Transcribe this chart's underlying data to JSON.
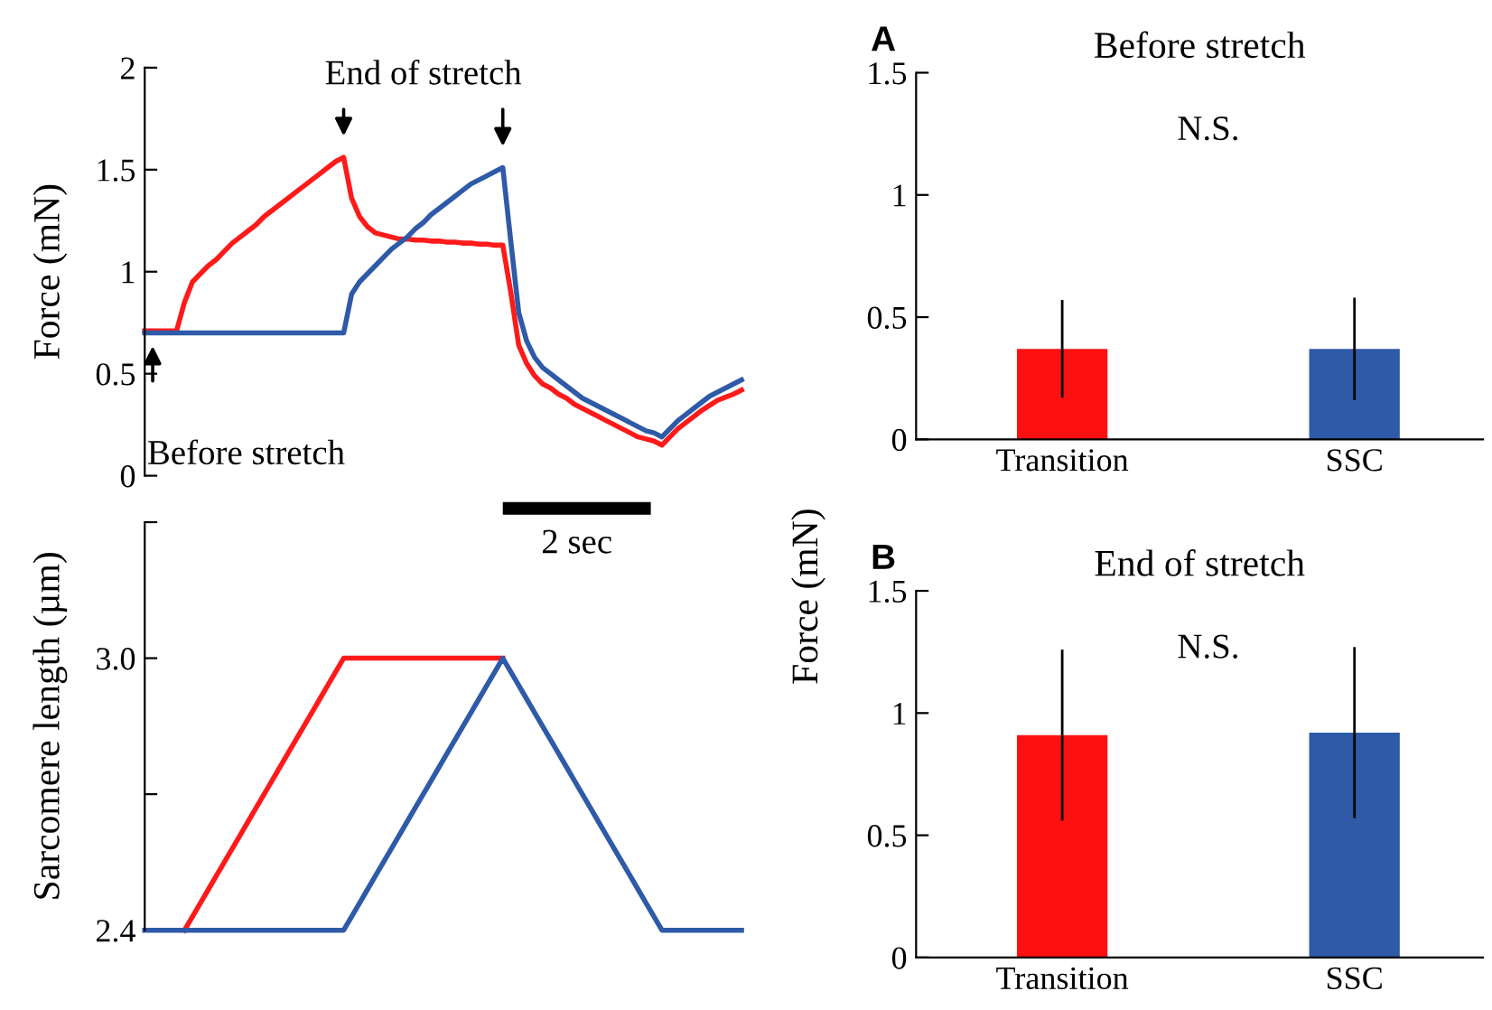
{
  "chart_data": [
    {
      "type": "line",
      "ylabel": "Force (mN)",
      "ylim": [
        0,
        2
      ],
      "yticks": [
        0,
        0.5,
        1,
        1.5,
        2
      ],
      "tick_labels": "y",
      "annotations": [
        "End of stretch",
        "Before stretch",
        "2 sec"
      ],
      "categories": [
        null,
        null,
        null,
        null,
        null,
        null,
        null,
        null,
        null,
        null,
        null,
        null,
        null,
        null,
        null,
        null,
        null,
        null,
        null,
        null,
        null,
        null,
        null,
        null,
        null,
        null,
        null,
        null,
        null,
        null,
        null,
        null,
        null,
        null,
        null,
        null,
        null,
        null,
        null,
        null,
        null,
        null,
        null,
        null,
        null,
        null,
        null,
        null,
        null,
        null,
        null,
        null,
        null,
        null,
        null,
        null,
        null,
        null,
        null,
        null,
        null,
        null,
        null,
        null,
        null,
        null,
        null,
        null,
        null,
        null,
        null,
        null,
        null,
        null,
        null,
        null
      ],
      "series": [
        {
          "color": "#ff1a1a",
          "values": [
            0.71,
            0.71,
            0.71,
            0.71,
            0.71,
            0.85,
            0.95,
            0.99,
            1.03,
            1.06,
            1.1,
            1.14,
            1.17,
            1.2,
            1.23,
            1.27,
            1.3,
            1.33,
            1.36,
            1.39,
            1.42,
            1.45,
            1.48,
            1.51,
            1.54,
            1.56,
            1.36,
            1.27,
            1.22,
            1.19,
            1.18,
            1.17,
            1.16,
            1.16,
            1.155,
            1.155,
            1.15,
            1.15,
            1.145,
            1.145,
            1.14,
            1.14,
            1.135,
            1.135,
            1.13,
            1.13,
            0.9,
            0.64,
            0.55,
            0.49,
            0.45,
            0.43,
            0.4,
            0.38,
            0.35,
            0.33,
            0.31,
            0.29,
            0.27,
            0.25,
            0.23,
            0.21,
            0.19,
            0.18,
            0.17,
            0.15,
            0.19,
            0.23,
            0.26,
            0.29,
            0.32,
            0.345,
            0.37,
            0.385,
            0.4,
            0.42
          ]
        },
        {
          "color": "#2e5aa8",
          "values": [
            0.7,
            0.7,
            0.7,
            0.7,
            0.7,
            0.7,
            0.7,
            0.7,
            0.7,
            0.7,
            0.7,
            0.7,
            0.7,
            0.7,
            0.7,
            0.7,
            0.7,
            0.7,
            0.7,
            0.7,
            0.7,
            0.7,
            0.7,
            0.7,
            0.7,
            0.7,
            0.89,
            0.95,
            0.99,
            1.03,
            1.07,
            1.11,
            1.14,
            1.17,
            1.21,
            1.24,
            1.28,
            1.31,
            1.34,
            1.37,
            1.4,
            1.43,
            1.45,
            1.47,
            1.49,
            1.51,
            1.15,
            0.8,
            0.66,
            0.58,
            0.53,
            0.5,
            0.47,
            0.44,
            0.41,
            0.38,
            0.36,
            0.34,
            0.32,
            0.3,
            0.28,
            0.26,
            0.24,
            0.22,
            0.21,
            0.19,
            0.23,
            0.27,
            0.3,
            0.33,
            0.36,
            0.39,
            0.41,
            0.43,
            0.45,
            0.47
          ]
        }
      ]
    },
    {
      "type": "line",
      "ylabel": "Sarcomere length (µm)",
      "ylim": [
        2.4,
        3.3
      ],
      "yticks": [
        {
          "value": 2.4,
          "label": "2.4"
        },
        {
          "value": 2.7,
          "label": null
        },
        {
          "value": 3.0,
          "label": "3.0"
        },
        {
          "value": 3.3,
          "label": null
        }
      ],
      "tick_labels": "y",
      "categories": [
        null,
        null,
        null,
        null,
        null,
        null,
        null,
        null,
        null,
        null,
        null,
        null,
        null,
        null,
        null,
        null,
        null,
        null,
        null,
        null,
        null,
        null,
        null,
        null,
        null,
        null,
        null,
        null,
        null,
        null,
        null,
        null,
        null,
        null,
        null,
        null,
        null,
        null,
        null,
        null,
        null,
        null,
        null,
        null,
        null,
        null,
        null,
        null,
        null,
        null,
        null,
        null,
        null,
        null,
        null,
        null,
        null,
        null,
        null,
        null,
        null,
        null,
        null,
        null,
        null,
        null,
        null,
        null,
        null,
        null,
        null,
        null,
        null,
        null,
        null,
        null
      ],
      "series": [
        {
          "color": "#ff1a1a",
          "values": [
            null,
            null,
            null,
            null,
            null,
            2.4,
            2.43,
            2.46,
            2.49,
            2.52,
            2.55,
            2.58,
            2.61,
            2.64,
            2.67,
            2.7,
            2.73,
            2.76,
            2.79,
            2.82,
            2.85,
            2.88,
            2.91,
            2.94,
            2.97,
            3.0,
            3.0,
            3.0,
            3.0,
            3.0,
            3.0,
            3.0,
            3.0,
            3.0,
            3.0,
            3.0,
            3.0,
            3.0,
            3.0,
            3.0,
            3.0,
            3.0,
            3.0,
            3.0,
            3.0,
            3.0,
            null,
            null,
            null,
            null,
            null,
            null,
            null,
            null,
            null,
            null,
            null,
            null,
            null,
            null,
            null,
            null,
            null,
            null,
            null,
            null,
            null,
            null,
            null,
            null,
            null,
            null,
            null,
            null,
            null,
            null
          ]
        },
        {
          "color": "#2e5aa8",
          "values": [
            2.4,
            2.4,
            2.4,
            2.4,
            2.4,
            2.4,
            2.4,
            2.4,
            2.4,
            2.4,
            2.4,
            2.4,
            2.4,
            2.4,
            2.4,
            2.4,
            2.4,
            2.4,
            2.4,
            2.4,
            2.4,
            2.4,
            2.4,
            2.4,
            2.4,
            2.4,
            2.43,
            2.46,
            2.49,
            2.52,
            2.55,
            2.58,
            2.61,
            2.64,
            2.67,
            2.7,
            2.73,
            2.76,
            2.79,
            2.82,
            2.85,
            2.88,
            2.91,
            2.94,
            2.97,
            3.0,
            2.97,
            2.94,
            2.91,
            2.88,
            2.85,
            2.82,
            2.79,
            2.76,
            2.73,
            2.7,
            2.67,
            2.64,
            2.61,
            2.58,
            2.55,
            2.52,
            2.49,
            2.46,
            2.43,
            2.4,
            2.4,
            2.4,
            2.4,
            2.4,
            2.4,
            2.4,
            2.4,
            2.4,
            2.4,
            2.4
          ]
        }
      ]
    },
    {
      "type": "bar",
      "title": "Before stretch",
      "annotations": [
        "A",
        "N.S."
      ],
      "categories": [
        "Transition",
        "SSC"
      ],
      "values": [
        0.37,
        0.37
      ],
      "errors": [
        0.2,
        0.21
      ],
      "colors": [
        "#ff1010",
        "#2e5aa8"
      ],
      "ylim": [
        0,
        1.5
      ],
      "yticks": [
        0,
        0.5,
        1,
        1.5
      ]
    },
    {
      "type": "bar",
      "title": "End of stretch",
      "ylabel": "Force (mN)",
      "annotations": [
        "B",
        "N.S."
      ],
      "categories": [
        "Transition",
        "SSC"
      ],
      "values": [
        0.91,
        0.92
      ],
      "errors": [
        0.35,
        0.35
      ],
      "colors": [
        "#ff1010",
        "#2e5aa8"
      ],
      "ylim": [
        0,
        1.5
      ],
      "yticks": [
        0,
        0.5,
        1,
        1.5
      ]
    }
  ]
}
